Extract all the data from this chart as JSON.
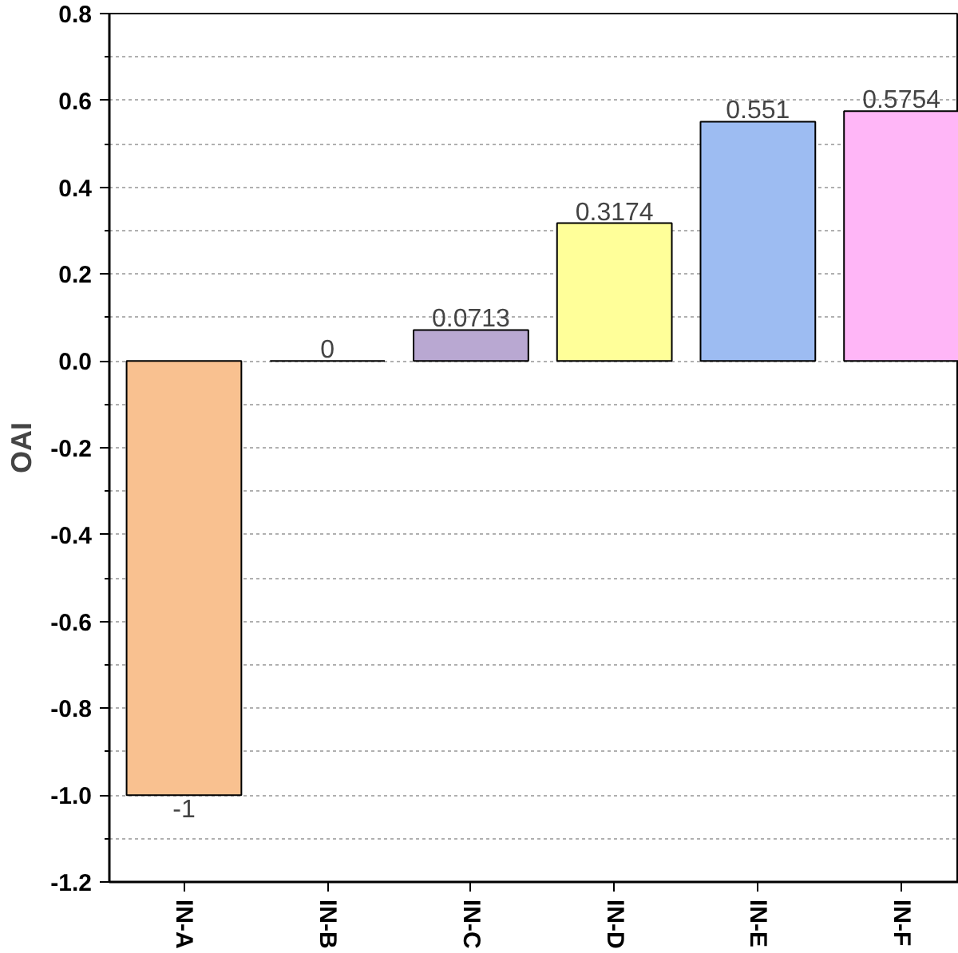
{
  "chart_data": {
    "type": "bar",
    "ylabel": "OAI",
    "categories": [
      "IN-A",
      "IN-B",
      "IN-C",
      "IN-D",
      "IN-E",
      "IN-F"
    ],
    "values": [
      -1,
      0,
      0.0713,
      0.3174,
      0.551,
      0.5754
    ],
    "colors": [
      "#f9c190",
      "#000000",
      "#b9a8d2",
      "#ffff99",
      "#9dbcf2",
      "#ffb6f7"
    ],
    "ylim": [
      -1.2,
      0.8
    ],
    "yticks": [
      -1.2,
      {
        "value": -1,
        "label": "-1.0"
      },
      -0.8,
      -0.6,
      -0.4,
      -0.2,
      {
        "value": 0,
        "label": "0.0"
      },
      0.2,
      0.4,
      0.6,
      0.8
    ],
    "grid": "y",
    "data_labels": true
  }
}
